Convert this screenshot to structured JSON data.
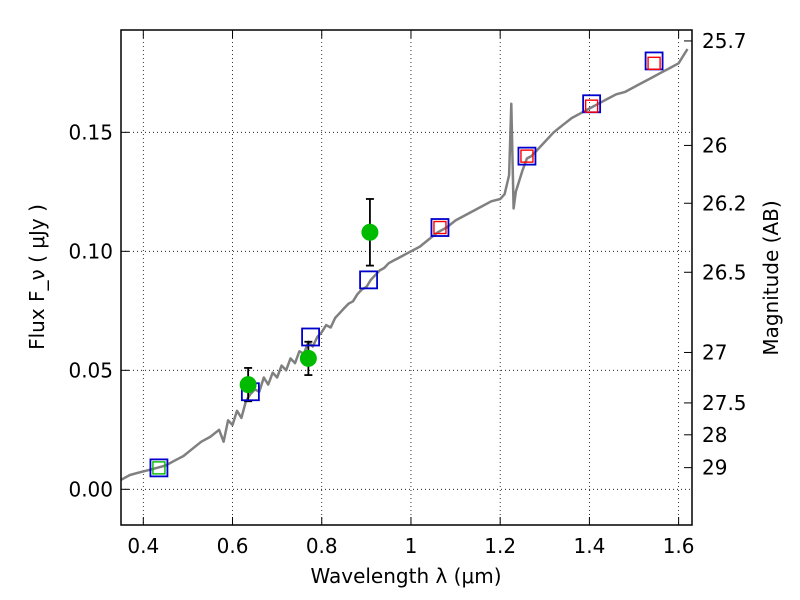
{
  "chart_data": {
    "type": "scatter",
    "xlabel": "Wavelength  λ (μm)",
    "ylabel": "Flux  F_ν  ( μJy )",
    "y2label": "Magnitude (AB)",
    "xlim": [
      0.35,
      1.63
    ],
    "ylim": [
      -0.015,
      0.193
    ],
    "grid": true,
    "x_ticks": [
      0.4,
      0.6,
      0.8,
      1.0,
      1.2,
      1.4,
      1.6
    ],
    "x_tick_labels": [
      "0.4",
      "0.6",
      "0.8",
      "1",
      "1.2",
      "1.4",
      "1.6"
    ],
    "y_ticks": [
      0.0,
      0.05,
      0.1,
      0.15
    ],
    "y_tick_labels": [
      "0.00",
      "0.05",
      "0.10",
      "0.15"
    ],
    "y2_ticks": [
      {
        "label": "25.7",
        "flux": 0.1884
      },
      {
        "label": "26",
        "flux": 0.1445
      },
      {
        "label": "26.2",
        "flux": 0.1202
      },
      {
        "label": "26.5",
        "flux": 0.0912
      },
      {
        "label": "27",
        "flux": 0.0575
      },
      {
        "label": "27.5",
        "flux": 0.0363
      },
      {
        "label": "28",
        "flux": 0.0229
      },
      {
        "label": "29",
        "flux": 0.0091
      }
    ],
    "sed_model": {
      "color": "#808080",
      "x": [
        0.35,
        0.37,
        0.39,
        0.41,
        0.43,
        0.45,
        0.47,
        0.49,
        0.51,
        0.53,
        0.55,
        0.57,
        0.58,
        0.59,
        0.6,
        0.61,
        0.62,
        0.63,
        0.64,
        0.65,
        0.66,
        0.67,
        0.68,
        0.69,
        0.7,
        0.71,
        0.72,
        0.73,
        0.74,
        0.75,
        0.76,
        0.77,
        0.78,
        0.79,
        0.8,
        0.81,
        0.82,
        0.83,
        0.84,
        0.85,
        0.86,
        0.87,
        0.88,
        0.89,
        0.9,
        0.91,
        0.92,
        0.93,
        0.94,
        0.95,
        0.96,
        0.97,
        0.98,
        0.99,
        1.0,
        1.02,
        1.04,
        1.06,
        1.08,
        1.1,
        1.12,
        1.14,
        1.16,
        1.18,
        1.2,
        1.21,
        1.22,
        1.225,
        1.23,
        1.235,
        1.24,
        1.25,
        1.26,
        1.27,
        1.28,
        1.3,
        1.32,
        1.34,
        1.36,
        1.38,
        1.4,
        1.42,
        1.44,
        1.46,
        1.48,
        1.5,
        1.52,
        1.54,
        1.56,
        1.58,
        1.6,
        1.62
      ],
      "y": [
        0.004,
        0.006,
        0.007,
        0.008,
        0.009,
        0.01,
        0.012,
        0.014,
        0.017,
        0.02,
        0.022,
        0.025,
        0.02,
        0.029,
        0.027,
        0.033,
        0.03,
        0.037,
        0.04,
        0.042,
        0.041,
        0.047,
        0.044,
        0.049,
        0.047,
        0.052,
        0.05,
        0.055,
        0.053,
        0.058,
        0.057,
        0.062,
        0.06,
        0.064,
        0.066,
        0.069,
        0.068,
        0.072,
        0.074,
        0.076,
        0.078,
        0.079,
        0.082,
        0.084,
        0.085,
        0.088,
        0.09,
        0.092,
        0.093,
        0.095,
        0.096,
        0.097,
        0.098,
        0.099,
        0.1,
        0.102,
        0.105,
        0.108,
        0.11,
        0.113,
        0.115,
        0.117,
        0.119,
        0.121,
        0.122,
        0.124,
        0.132,
        0.162,
        0.118,
        0.125,
        0.128,
        0.134,
        0.139,
        0.14,
        0.142,
        0.146,
        0.15,
        0.153,
        0.156,
        0.158,
        0.16,
        0.162,
        0.164,
        0.166,
        0.167,
        0.169,
        0.171,
        0.173,
        0.175,
        0.177,
        0.179,
        0.185
      ]
    },
    "model_photometry": {
      "color": "#0000cc",
      "x": [
        0.435,
        0.64,
        0.775,
        0.905,
        1.065,
        1.26,
        1.405,
        1.545
      ],
      "y": [
        0.009,
        0.041,
        0.064,
        0.088,
        0.11,
        0.14,
        0.162,
        0.18
      ]
    },
    "observed_limits": {
      "color": "#ff0000",
      "x": [
        1.065,
        1.26,
        1.405,
        1.545
      ],
      "y": [
        0.11,
        0.14,
        0.161,
        0.179
      ]
    },
    "observed_detections": {
      "color": "#00bb00",
      "x": [
        0.435,
        0.635,
        0.77,
        0.908
      ],
      "y": [
        0.009,
        0.044,
        0.055,
        0.108
      ],
      "yerr": [
        0.0,
        0.007,
        0.007,
        0.014
      ]
    }
  }
}
